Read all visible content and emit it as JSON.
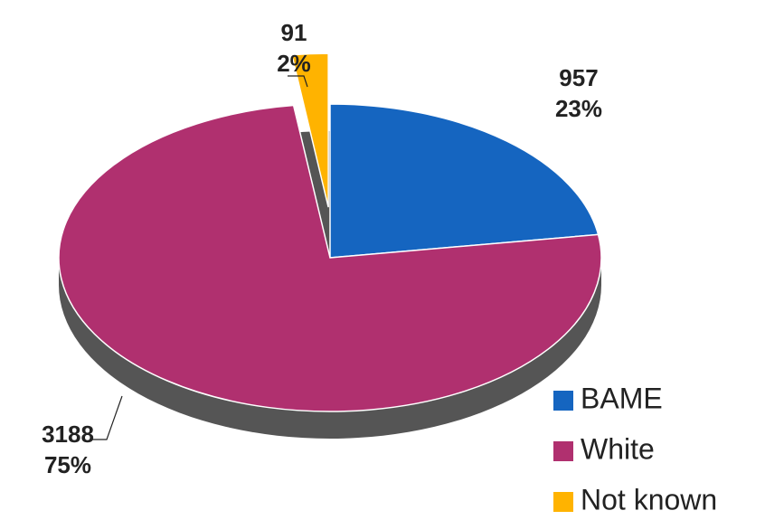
{
  "chart_data": {
    "type": "pie",
    "categories": [
      "BAME",
      "White",
      "Not known"
    ],
    "values": [
      957,
      3188,
      91
    ],
    "percent_labels": [
      "23%",
      "75%",
      "2%"
    ],
    "colors": [
      "#1565c0",
      "#b0306f",
      "#ffb300"
    ],
    "legend": "bottom-right"
  }
}
